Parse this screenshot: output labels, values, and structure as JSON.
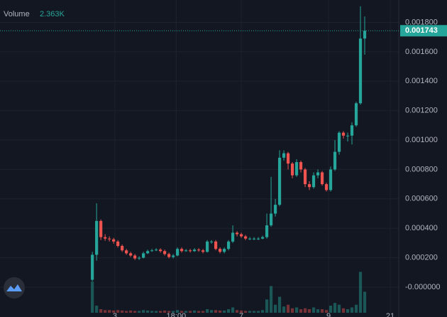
{
  "chart_data": {
    "type": "candlestick",
    "up_color": "#26a69a",
    "down_color": "#ef5350",
    "xlim": [
      -21.7,
      72
    ],
    "xticks": [
      {
        "value": 5.3,
        "label": "3"
      },
      {
        "value": 19.7,
        "label": "18:00"
      },
      {
        "value": 35,
        "label": "7"
      },
      {
        "value": 55.5,
        "label": "9"
      },
      {
        "value": 70,
        "label": "21"
      }
    ],
    "ylim": [
      -0.000174,
      0.001952
    ],
    "yticks": [
      {
        "value": 0,
        "label": "-0.000000"
      },
      {
        "value": 0.0002,
        "label": "0.000200"
      },
      {
        "value": 0.0004,
        "label": "0.000400"
      },
      {
        "value": 0.0006,
        "label": "0.000600"
      },
      {
        "value": 0.0008,
        "label": "0.000800"
      },
      {
        "value": 0.001,
        "label": "0.001000"
      },
      {
        "value": 0.0012,
        "label": "0.001200"
      },
      {
        "value": 0.0014,
        "label": "0.001400"
      },
      {
        "value": 0.0016,
        "label": "0.001600"
      },
      {
        "value": 0.0018,
        "label": "0.001800"
      }
    ],
    "grid": true,
    "open": [
      5e-05,
      0.00022,
      0.00045,
      0.00034,
      0.00033,
      0.000325,
      0.00031,
      0.00028,
      0.00025,
      0.00023,
      0.000215,
      0.000195,
      0.0002,
      0.00023,
      0.000245,
      0.00025,
      0.000255,
      0.000245,
      0.000225,
      0.000205,
      0.000215,
      0.00026,
      0.000245,
      0.00025,
      0.000245,
      0.000255,
      0.00025,
      0.00024,
      0.00031,
      0.00031,
      0.00026,
      0.00024,
      0.00026,
      0.00031,
      0.00037,
      0.00036,
      0.000345,
      0.00033,
      0.00033,
      0.00033,
      0.00033,
      0.00034,
      0.00042,
      0.0005,
      0.00056,
      0.00088,
      0.00091,
      0.00084,
      0.00076,
      0.00085,
      0.0008,
      0.0007,
      0.00068,
      0.00076,
      0.00078,
      0.0007,
      0.00066,
      0.0008,
      0.00092,
      0.00105,
      0.00103,
      0.00103,
      0.0011,
      0.00125,
      0.00169
    ],
    "high": [
      0.00024,
      0.00057,
      0.00046,
      0.00036,
      0.000345,
      0.000335,
      0.00032,
      0.00029,
      0.00026,
      0.00024,
      0.000225,
      0.00021,
      0.00024,
      0.000255,
      0.00026,
      0.000265,
      0.000265,
      0.000255,
      0.000235,
      0.000225,
      0.00027,
      0.00027,
      0.00026,
      0.00026,
      0.000265,
      0.000265,
      0.00026,
      0.00032,
      0.00032,
      0.00032,
      0.00027,
      0.00027,
      0.00032,
      0.00042,
      0.00038,
      0.00037,
      0.000355,
      0.00034,
      0.00034,
      0.00034,
      0.00035,
      0.0005,
      0.00075,
      0.0006,
      0.00093,
      0.00093,
      0.00092,
      0.00085,
      0.00087,
      0.00086,
      0.00081,
      0.00072,
      0.00078,
      0.0008,
      0.00079,
      0.00071,
      0.00082,
      0.001,
      0.00106,
      0.00106,
      0.00105,
      0.00112,
      0.00126,
      0.00191,
      0.00184
    ],
    "low": [
      4e-05,
      0.00018,
      0.00032,
      0.000315,
      0.00031,
      0.000295,
      0.00027,
      0.00024,
      0.00022,
      0.000205,
      0.000185,
      0.000185,
      0.000195,
      0.000225,
      0.00024,
      0.000245,
      0.000235,
      0.000215,
      0.000195,
      0.000195,
      0.00021,
      0.000235,
      0.00024,
      0.000235,
      0.00024,
      0.00024,
      0.00023,
      0.000235,
      0.000295,
      0.00025,
      0.00023,
      0.00023,
      0.00025,
      0.0003,
      0.000345,
      0.000335,
      0.00032,
      0.00032,
      0.00032,
      0.00032,
      0.000325,
      0.00033,
      0.00041,
      0.00048,
      0.00055,
      0.00086,
      0.0008,
      0.00074,
      0.00075,
      0.00078,
      0.00068,
      0.00066,
      0.00067,
      0.00074,
      0.00069,
      0.00065,
      0.00065,
      0.00079,
      0.0009,
      0.00101,
      0.00099,
      0.00097,
      0.00109,
      0.00124,
      0.00158
    ],
    "close": [
      0.00022,
      0.00045,
      0.00034,
      0.00033,
      0.000325,
      0.00031,
      0.00028,
      0.00025,
      0.00023,
      0.000215,
      0.000195,
      0.0002,
      0.00023,
      0.000245,
      0.00025,
      0.000255,
      0.000245,
      0.000225,
      0.000205,
      0.000215,
      0.00026,
      0.000245,
      0.00025,
      0.000245,
      0.000255,
      0.00025,
      0.00024,
      0.00031,
      0.00031,
      0.00026,
      0.00024,
      0.00026,
      0.00031,
      0.00037,
      0.00036,
      0.000345,
      0.00033,
      0.00033,
      0.00033,
      0.00033,
      0.00034,
      0.00042,
      0.0005,
      0.00056,
      0.00088,
      0.00091,
      0.00084,
      0.00076,
      0.00085,
      0.0008,
      0.0007,
      0.00068,
      0.00076,
      0.00078,
      0.0007,
      0.00066,
      0.0008,
      0.00092,
      0.00105,
      0.00103,
      0.00103,
      0.0011,
      0.00125,
      0.00169,
      0.001743
    ],
    "volume": {
      "name": "Volume",
      "lim": [
        0,
        8000
      ],
      "values": [
        3500,
        800,
        400,
        300,
        300,
        250,
        300,
        250,
        200,
        250,
        200,
        200,
        300,
        250,
        200,
        200,
        200,
        250,
        200,
        200,
        300,
        200,
        200,
        200,
        250,
        200,
        200,
        400,
        300,
        300,
        250,
        250,
        400,
        600,
        300,
        250,
        200,
        200,
        200,
        200,
        300,
        1500,
        3000,
        900,
        1800,
        700,
        900,
        500,
        600,
        400,
        500,
        400,
        600,
        400,
        400,
        300,
        800,
        1100,
        900,
        500,
        400,
        600,
        900,
        4600,
        2363
      ],
      "last_label": "2.363K"
    },
    "last_price": {
      "value": 0.001743,
      "label": "0.001743"
    }
  }
}
